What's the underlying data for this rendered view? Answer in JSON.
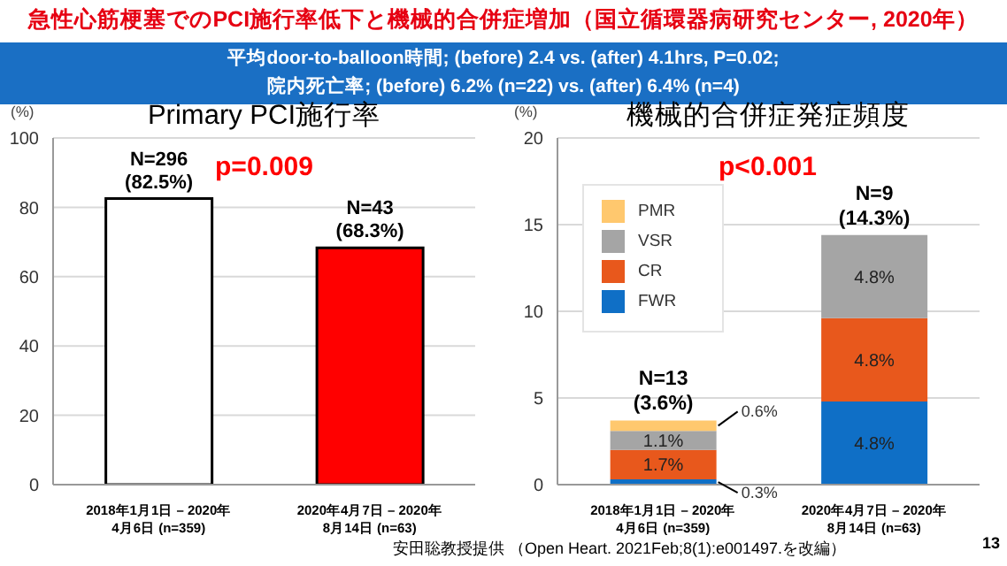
{
  "chart_data": [
    {
      "type": "other",
      "title": "急性心筋梗塞でのPCI施行率低下と機械的合併症増加（国立循環器病研究センター, 2020年）",
      "subtitle": "平均door-to-balloon時間; (before) 2.4 vs. (after) 4.1hrs, P=0.02;\n院内死亡率; (before) 6.2% (n=22) vs. (after) 6.4% (n=4)",
      "annotations": [
        "安田聡教授提供 （Open Heart. 2021Feb;8(1):e001497.を改編）",
        "13"
      ]
    },
    {
      "type": "bar",
      "title": "Primary PCI施行率",
      "ylabel": "(%)",
      "categories": [
        "2018年1月1日 – 2020年\n4月6日 (n=359)",
        "2020年4月7日 – 2020年\n8月14日 (n=63)"
      ],
      "values": [
        82.5,
        68.3
      ],
      "colors": [
        "#ffffff",
        "#ff0000"
      ],
      "value_labels": [
        "N=296\n(82.5%)",
        "N=43\n(68.3%)"
      ],
      "ylim": [
        0,
        100
      ],
      "yticks": [
        0,
        20,
        40,
        60,
        80,
        100
      ],
      "grid": "y",
      "annotations": [
        "p=0.009"
      ]
    },
    {
      "type": "bar",
      "title": "機械的合併症発症頻度",
      "ylabel": "(%)",
      "categories": [
        "2018年1月1日 – 2020年\n4月6日 (n=359)",
        "2020年4月7日 – 2020年\n8月14日 (n=63)"
      ],
      "stacked": true,
      "series": [
        {
          "name": "FWR",
          "color": "#0f6fc6",
          "values": [
            0.3,
            4.8
          ],
          "value_labels": [
            "0.3%",
            "4.8%"
          ]
        },
        {
          "name": "CR",
          "color": "#e8581c",
          "values": [
            1.7,
            4.8
          ],
          "value_labels": [
            "1.7%",
            "4.8%"
          ]
        },
        {
          "name": "VSR",
          "color": "#a5a5a5",
          "values": [
            1.1,
            4.8
          ],
          "value_labels": [
            "1.1%",
            "4.8%"
          ]
        },
        {
          "name": "PMR",
          "color": "#ffc86e",
          "values": [
            0.6,
            null
          ],
          "value_labels": [
            "0.6%",
            null
          ]
        }
      ],
      "totals": [
        "N=13\n(3.6%)",
        "N=9\n(14.3%)"
      ],
      "ylim": [
        0,
        20
      ],
      "yticks": [
        0,
        5,
        10,
        15,
        20
      ],
      "grid": "y",
      "legend": "top left",
      "annotations": [
        "p<0.001"
      ]
    }
  ]
}
